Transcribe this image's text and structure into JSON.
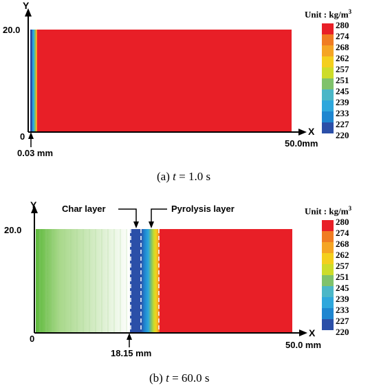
{
  "legend": {
    "unit_label": "Unit : kg/m",
    "unit_sup": "3",
    "values": [
      "280",
      "274",
      "268",
      "262",
      "257",
      "251",
      "245",
      "239",
      "233",
      "227",
      "220"
    ],
    "colors": [
      "#e81f27",
      "#f07c22",
      "#f5a524",
      "#f4cf1d",
      "#cddc29",
      "#7fc26b",
      "#4bb7c7",
      "#2ea7dc",
      "#1e86d0",
      "#2b4fa8"
    ]
  },
  "panel_a": {
    "y_axis_label": "Y",
    "x_axis_label": "X",
    "y_max_label": "20.0",
    "origin_label": "0",
    "x_max_label": "50.0mm",
    "annotation": "0.03 mm",
    "caption_prefix": "(a) ",
    "caption_var": "t",
    "caption_suffix": " = 1.0 s"
  },
  "panel_b": {
    "y_axis_label": "Y",
    "x_axis_label": "X",
    "y_max_label": "20.0",
    "origin_label": "0",
    "x_max_label": "50.0 mm",
    "annotation": "18.15 mm",
    "char_layer_label": "Char layer",
    "pyrolysis_layer_label": "Pyrolysis layer",
    "caption_prefix": "(b) ",
    "caption_var": "t",
    "caption_suffix": " = 60.0 s"
  }
}
